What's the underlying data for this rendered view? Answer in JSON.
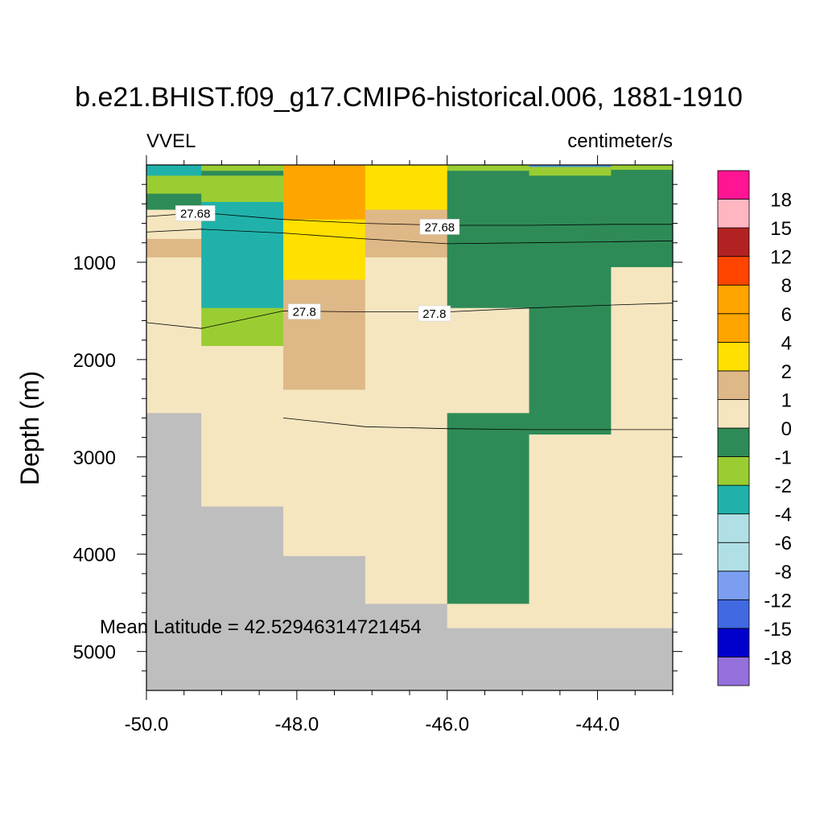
{
  "chart_data": {
    "type": "heatmap",
    "title": "b.e21.BHIST.f09_g17.CMIP6-historical.006, 1881-1910",
    "left_string": "VVEL",
    "right_string": "centimeter/s",
    "ylabel": "Depth (m)",
    "xlabel": "",
    "xlim": [
      -50.0,
      -43.0
    ],
    "ylim": [
      0,
      5400
    ],
    "y_reversed": true,
    "x_tick_labels": [
      "-50.0",
      "-48.0",
      "-46.0",
      "-44.0"
    ],
    "x_ticks": [
      -50.0,
      -48.0,
      -46.0,
      -44.0
    ],
    "y_tick_labels": [
      "1000",
      "2000",
      "3000",
      "4000",
      "5000"
    ],
    "y_ticks": [
      1000,
      2000,
      3000,
      4000,
      5000
    ],
    "annotation": "Mean Latitude = 42.52946314721454",
    "land_color": "#bebebe",
    "colorbar": {
      "colors": [
        "#9370db",
        "#0000cd",
        "#4169e1",
        "#7b9ef0",
        "#b0e0e6",
        "#b0e0e6",
        "#20b2aa",
        "#9acd32",
        "#2e8b57",
        "#f5e6c0",
        "#deb887",
        "#ffe000",
        "#ffa500",
        "#ffa500",
        "#ff4500",
        "#b22222",
        "#ffb6c1",
        "#ff1493"
      ],
      "labels": [
        "-18",
        "-15",
        "-12",
        "-8",
        "-6",
        "-4",
        "-2",
        "-1",
        "0",
        "1",
        "2",
        "4",
        "6",
        "8",
        "12",
        "15",
        "18"
      ]
    },
    "columns": [
      {
        "x0": -50.0,
        "x1": -49.27,
        "cells": [
          {
            "top": 0,
            "bottom": 110,
            "color": "#20b2aa"
          },
          {
            "top": 110,
            "bottom": 295,
            "color": "#9acd32"
          },
          {
            "top": 295,
            "bottom": 460,
            "color": "#2e8b57"
          },
          {
            "top": 460,
            "bottom": 760,
            "color": "#f5e6c0"
          },
          {
            "top": 760,
            "bottom": 950,
            "color": "#deb887"
          },
          {
            "top": 950,
            "bottom": 2550,
            "color": "#f5e6c0"
          },
          {
            "top": 2550,
            "bottom": 5400,
            "color": "#bebebe"
          }
        ]
      },
      {
        "x0": -49.27,
        "x1": -48.18,
        "cells": [
          {
            "top": 0,
            "bottom": 60,
            "color": "#9acd32"
          },
          {
            "top": 60,
            "bottom": 110,
            "color": "#2e8b57"
          },
          {
            "top": 110,
            "bottom": 380,
            "color": "#9acd32"
          },
          {
            "top": 380,
            "bottom": 1470,
            "color": "#20b2aa"
          },
          {
            "top": 1470,
            "bottom": 1860,
            "color": "#9acd32"
          },
          {
            "top": 1860,
            "bottom": 3510,
            "color": "#f5e6c0"
          },
          {
            "top": 3510,
            "bottom": 5400,
            "color": "#bebebe"
          }
        ]
      },
      {
        "x0": -48.18,
        "x1": -47.09,
        "cells": [
          {
            "top": 0,
            "bottom": 560,
            "color": "#ffa500"
          },
          {
            "top": 560,
            "bottom": 1180,
            "color": "#ffe000"
          },
          {
            "top": 1180,
            "bottom": 2310,
            "color": "#deb887"
          },
          {
            "top": 2310,
            "bottom": 4020,
            "color": "#f5e6c0"
          },
          {
            "top": 4020,
            "bottom": 5400,
            "color": "#bebebe"
          }
        ]
      },
      {
        "x0": -47.09,
        "x1": -46.0,
        "cells": [
          {
            "top": 0,
            "bottom": 460,
            "color": "#ffe000"
          },
          {
            "top": 460,
            "bottom": 950,
            "color": "#deb887"
          },
          {
            "top": 950,
            "bottom": 4510,
            "color": "#f5e6c0"
          },
          {
            "top": 4510,
            "bottom": 5400,
            "color": "#bebebe"
          }
        ]
      },
      {
        "x0": -46.0,
        "x1": -44.91,
        "cells": [
          {
            "top": 0,
            "bottom": 60,
            "color": "#9acd32"
          },
          {
            "top": 60,
            "bottom": 1470,
            "color": "#2e8b57"
          },
          {
            "top": 1470,
            "bottom": 2550,
            "color": "#f5e6c0"
          },
          {
            "top": 2550,
            "bottom": 4510,
            "color": "#2e8b57"
          },
          {
            "top": 4510,
            "bottom": 4760,
            "color": "#f5e6c0"
          },
          {
            "top": 4760,
            "bottom": 5400,
            "color": "#bebebe"
          }
        ]
      },
      {
        "x0": -44.91,
        "x1": -43.82,
        "cells": [
          {
            "top": 0,
            "bottom": 20,
            "color": "#4b8fd9"
          },
          {
            "top": 20,
            "bottom": 110,
            "color": "#9acd32"
          },
          {
            "top": 110,
            "bottom": 2770,
            "color": "#2e8b57"
          },
          {
            "top": 2770,
            "bottom": 4760,
            "color": "#f5e6c0"
          },
          {
            "top": 4760,
            "bottom": 5400,
            "color": "#bebebe"
          }
        ]
      },
      {
        "x0": -43.82,
        "x1": -43.0,
        "cells": [
          {
            "top": 0,
            "bottom": 50,
            "color": "#9acd32"
          },
          {
            "top": 50,
            "bottom": 1050,
            "color": "#2e8b57"
          },
          {
            "top": 1050,
            "bottom": 4760,
            "color": "#f5e6c0"
          },
          {
            "top": 4760,
            "bottom": 5400,
            "color": "#bebebe"
          }
        ]
      }
    ],
    "contours": [
      {
        "label": "27.68",
        "label_at": [
          -49.35,
          500
        ],
        "points": [
          [
            -50.0,
            530
          ],
          [
            -49.27,
            490
          ],
          [
            -48.18,
            560
          ],
          [
            -47.09,
            600
          ],
          [
            -46.0,
            620
          ],
          [
            -44.91,
            620
          ],
          [
            -43.82,
            610
          ],
          [
            -43.0,
            610
          ]
        ]
      },
      {
        "label": "27.68",
        "label_at": [
          -46.1,
          640
        ],
        "points": [
          [
            -50.0,
            690
          ],
          [
            -49.27,
            660
          ],
          [
            -48.18,
            700
          ],
          [
            -47.09,
            760
          ],
          [
            -46.0,
            810
          ],
          [
            -44.91,
            800
          ],
          [
            -43.82,
            790
          ],
          [
            -43.0,
            780
          ]
        ]
      },
      {
        "label": "27.8",
        "label_at": [
          -47.9,
          1510
        ],
        "points": [
          [
            -50.0,
            1620
          ],
          [
            -49.27,
            1680
          ],
          [
            -48.18,
            1500
          ],
          [
            -47.09,
            1510
          ],
          [
            -46.0,
            1510
          ],
          [
            -44.91,
            1470
          ],
          [
            -43.82,
            1440
          ],
          [
            -43.0,
            1420
          ]
        ]
      },
      {
        "label": "27.8",
        "label_at": [
          -46.17,
          1530
        ],
        "points": []
      },
      {
        "label": "",
        "label_at": null,
        "points": [
          [
            -48.18,
            2600
          ],
          [
            -47.09,
            2690
          ],
          [
            -46.0,
            2710
          ],
          [
            -44.91,
            2720
          ],
          [
            -43.82,
            2720
          ],
          [
            -43.0,
            2720
          ]
        ]
      }
    ]
  }
}
